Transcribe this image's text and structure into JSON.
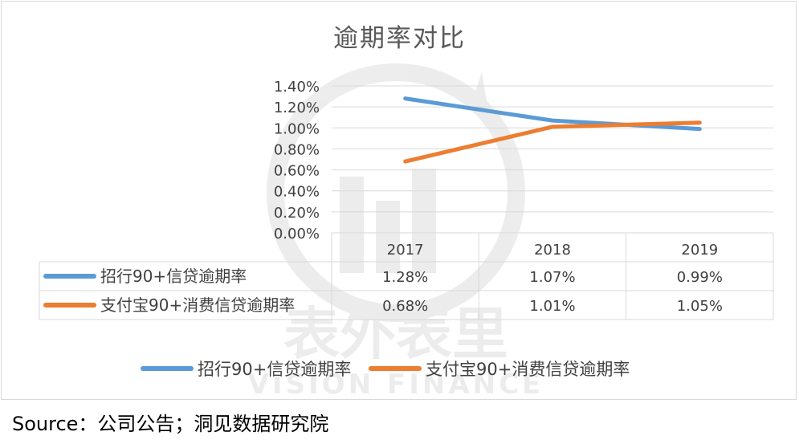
{
  "chart_data": {
    "type": "line",
    "title": "逾期率对比",
    "categories": [
      "2017",
      "2018",
      "2019"
    ],
    "series": [
      {
        "name": "招行90+信贷逾期率",
        "values": [
          1.28,
          1.07,
          0.99
        ],
        "labels": [
          "1.28%",
          "1.07%",
          "0.99%"
        ],
        "color": "#5b9bd5"
      },
      {
        "name": "支付宝90+消费信贷逾期率",
        "values": [
          0.68,
          1.01,
          1.05
        ],
        "labels": [
          "0.68%",
          "1.01%",
          "1.05%"
        ],
        "color": "#ed7d31"
      }
    ],
    "yticks": [
      "1.40%",
      "1.20%",
      "1.00%",
      "0.80%",
      "0.60%",
      "0.40%",
      "0.20%",
      "0.00%"
    ],
    "ylim": [
      0,
      1.4
    ],
    "grid": true,
    "legend": "bottom",
    "data_table": true
  },
  "watermark": {
    "cn": "表外表里",
    "en": "VISION FINANCE"
  },
  "source": "Source：公司公告；洞见数据研究院"
}
